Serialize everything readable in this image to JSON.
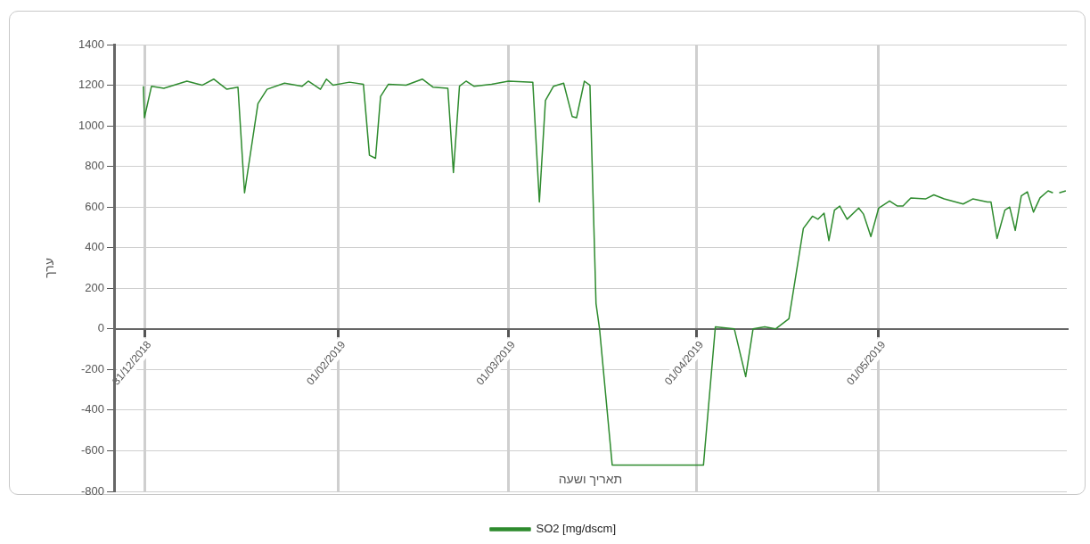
{
  "chart_data": {
    "type": "line",
    "xlabel": "תאריך ושעה",
    "ylabel": "ערך",
    "x": [
      "2018-12-30T20:00",
      "2018-12-31T00:00",
      "2019-01-01T04:00",
      "2019-01-03T05:00",
      "2019-01-07T00:00",
      "2019-01-09T12:00",
      "2019-01-11T10:00",
      "2019-01-13T14:00",
      "2019-01-15T10:00",
      "2019-01-16T12:00",
      "2019-01-18T17:00",
      "2019-01-20T05:00",
      "2019-01-23T02:00",
      "2019-01-26T00:00",
      "2019-01-27T00:00",
      "2019-01-29T00:00",
      "2019-01-30T00:00",
      "2019-01-31T02:00",
      "2019-02-02T19:00",
      "2019-02-05T02:00",
      "2019-02-06T02:00",
      "2019-02-07T02:00",
      "2019-02-07T22:00",
      "2019-02-09T05:00",
      "2019-02-12T03:00",
      "2019-02-14T19:00",
      "2019-02-16T14:00",
      "2019-02-19T00:00",
      "2019-02-19T22:00",
      "2019-02-20T22:00",
      "2019-02-22T00:00",
      "2019-02-23T07:00",
      "2019-02-26T05:00",
      "2019-03-01T00:00",
      "2019-03-05T00:00",
      "2019-03-06T02:00",
      "2019-03-07T02:00",
      "2019-03-08T10:00",
      "2019-03-10T02:00",
      "2019-03-11T12:00",
      "2019-03-12T05:00",
      "2019-03-13T12:00",
      "2019-03-14T10:00",
      "2019-03-15T10:00",
      "2019-03-16T00:00",
      "2019-03-18T02:00",
      "2019-04-02T03:00",
      "2019-04-04T02:00",
      "2019-04-07T05:00",
      "2019-04-09T02:00",
      "2019-04-10T07:00",
      "2019-04-12T05:00",
      "2019-04-14T00:00",
      "2019-04-16T05:00",
      "2019-04-18T14:00",
      "2019-04-20T02:00",
      "2019-04-21T00:00",
      "2019-04-22T00:00",
      "2019-04-22T19:00",
      "2019-04-23T17:00",
      "2019-04-24T14:00",
      "2019-04-25T19:00",
      "2019-04-27T17:00",
      "2019-04-28T12:00",
      "2019-04-29T17:00",
      "2019-05-01T00:00",
      "2019-05-02T19:00",
      "2019-05-04T02:00",
      "2019-05-05T00:00",
      "2019-05-06T07:00",
      "2019-05-08T17:00",
      "2019-05-10T02:00",
      "2019-05-11T19:00",
      "2019-05-14T22:00",
      "2019-05-16T12:00",
      "2019-05-18T22:00",
      "2019-05-19T12:00",
      "2019-05-20T12:00",
      "2019-05-21T19:00",
      "2019-05-22T14:00",
      "2019-05-23T12:00",
      "2019-05-24T12:00",
      "2019-05-25T12:00",
      "2019-05-26T12:00",
      "2019-05-27T14:00",
      "2019-05-28T22:00",
      "2019-05-29T17:00",
      "2019-05-30T06:00",
      "2019-05-30T18:00",
      "2019-05-31T20:00"
    ],
    "series": [
      {
        "name": "SO2 [mg/dscm]",
        "color": "#2e8b2e",
        "values": [
          1195,
          1040,
          1195,
          1185,
          1220,
          1200,
          1230,
          1180,
          1190,
          670,
          1110,
          1180,
          1210,
          1195,
          1220,
          1180,
          1230,
          1200,
          1215,
          1205,
          855,
          840,
          1145,
          1205,
          1200,
          1230,
          1190,
          1185,
          770,
          1195,
          1220,
          1195,
          1205,
          1220,
          1215,
          625,
          1125,
          1195,
          1210,
          1045,
          1040,
          1220,
          1200,
          125,
          0,
          -670,
          -670,
          10,
          0,
          -235,
          0,
          10,
          0,
          50,
          495,
          555,
          540,
          570,
          435,
          585,
          605,
          540,
          595,
          565,
          455,
          595,
          630,
          605,
          605,
          645,
          640,
          660,
          640,
          615,
          640,
          625,
          625,
          445,
          585,
          600,
          485,
          655,
          675,
          575,
          645,
          680,
          670,
          null,
          670,
          680
        ]
      }
    ],
    "xlim": [
      "2018-12-26T00:00",
      "2019-06-01T00:00"
    ],
    "xticks": [
      {
        "value": "2018-12-31",
        "label": "31/12/2018"
      },
      {
        "value": "2019-02-01",
        "label": "01/02/2019"
      },
      {
        "value": "2019-03-01",
        "label": "01/03/2019"
      },
      {
        "value": "2019-04-01",
        "label": "01/04/2019"
      },
      {
        "value": "2019-05-01",
        "label": "01/05/2019"
      }
    ],
    "ylim": [
      -800,
      1400
    ],
    "yticks": [
      -800,
      -600,
      -400,
      -200,
      0,
      200,
      400,
      600,
      800,
      1000,
      1200,
      1400
    ],
    "grid": true,
    "legend": "bottom",
    "marker": "none",
    "line_style": "solid"
  }
}
